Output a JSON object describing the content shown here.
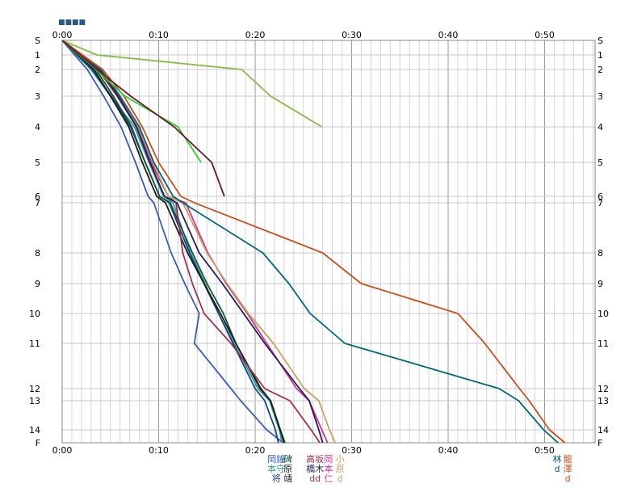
{
  "chart_data": {
    "type": "line",
    "title": "",
    "xlabel": "",
    "ylabel": "",
    "x_axis": {
      "unit": "minutes",
      "range": [
        0,
        55
      ],
      "ticks": [
        {
          "value": 0,
          "label": "0:00"
        },
        {
          "value": 10,
          "label": "0:10"
        },
        {
          "value": 20,
          "label": "0:20"
        },
        {
          "value": 30,
          "label": "0:30"
        },
        {
          "value": 40,
          "label": "0:40"
        },
        {
          "value": 50,
          "label": "0:50"
        }
      ],
      "grid_minor_step": 1,
      "grid_major_step": 10
    },
    "y_axis": {
      "categories": [
        "S",
        "1",
        "2",
        "3",
        "4",
        "5",
        "6",
        "7",
        "8",
        "9",
        "10",
        "11",
        "12",
        "13",
        "14",
        "F"
      ],
      "inverted": true
    },
    "grid": true,
    "corner_label": "■■■■",
    "series": [
      {
        "name": "series-1",
        "color": "#3a5bbf",
        "finish": 22.9,
        "values": [
          0,
          1.3,
          2.6,
          4.3,
          6.1,
          7.6,
          8.9,
          9.5,
          11.3,
          12.7,
          14.2,
          13.7,
          17.5,
          18.5,
          21.2,
          22.9
        ]
      },
      {
        "name": "series-2",
        "color": "#2a9a9a",
        "finish": 22.8,
        "values": [
          0,
          1.5,
          3.0,
          5.0,
          7.5,
          9.0,
          10.5,
          11.5,
          13.3,
          14.8,
          16.2,
          17.8,
          20.3,
          21.5,
          22.5,
          22.8
        ]
      },
      {
        "name": "series-3",
        "color": "#1a3f8c",
        "finish": 22.4,
        "values": [
          0,
          1.6,
          3.1,
          5.1,
          7.1,
          8.6,
          10.1,
          11.1,
          13.2,
          14.7,
          16.2,
          17.7,
          20.0,
          21.0,
          22.1,
          22.4
        ]
      },
      {
        "name": "series-4",
        "color": "#0a5a2a",
        "finish": 23.1,
        "values": [
          0,
          1.8,
          3.5,
          5.3,
          7.2,
          8.6,
          10.1,
          11.2,
          13.5,
          15.0,
          16.7,
          18.0,
          20.5,
          21.6,
          22.6,
          23.1
        ]
      },
      {
        "name": "series-5",
        "color": "#1a1a1a",
        "finish": 23.0,
        "values": [
          0,
          1.7,
          3.3,
          5.0,
          6.9,
          8.3,
          9.8,
          10.7,
          13.0,
          14.7,
          16.4,
          18.0,
          20.6,
          21.6,
          22.6,
          23.0
        ]
      },
      {
        "name": "series-6",
        "color": "#a03050",
        "finish": 26.7,
        "values": [
          0,
          1.9,
          3.7,
          5.7,
          7.7,
          9.2,
          11.0,
          11.8,
          12.5,
          13.5,
          14.7,
          17.5,
          21.0,
          23.6,
          25.8,
          26.7
        ]
      },
      {
        "name": "series-7",
        "color": "#cc3399",
        "finish": 27.5,
        "values": [
          0,
          2.0,
          3.9,
          5.9,
          7.8,
          9.3,
          11.0,
          12.8,
          15.1,
          17.0,
          19.2,
          21.2,
          24.3,
          25.6,
          26.9,
          27.5
        ]
      },
      {
        "name": "series-8",
        "color": "#c8a060",
        "finish": 28.3,
        "values": [
          0,
          2.1,
          4.1,
          6.0,
          7.9,
          9.4,
          11.0,
          12.5,
          15.0,
          17.1,
          19.3,
          21.9,
          25.1,
          26.6,
          27.7,
          28.3
        ]
      },
      {
        "name": "series-9",
        "color": "#2a1a5a",
        "finish": 27.0,
        "values": [
          0,
          2.0,
          3.9,
          5.8,
          7.7,
          9.1,
          10.6,
          11.9,
          14.2,
          16.6,
          18.8,
          21.0,
          24.6,
          25.6,
          26.6,
          27.0
        ]
      },
      {
        "name": "series-10",
        "color": "#00667a",
        "finish": 51.4,
        "values": [
          0,
          2.0,
          4.0,
          6.0,
          8.0,
          9.5,
          11.5,
          12.5,
          20.8,
          23.5,
          25.7,
          29.3,
          45.3,
          47.3,
          49.9,
          51.4
        ]
      },
      {
        "name": "series-11",
        "color": "#c8501e",
        "finish": 52.1,
        "values": [
          0,
          2.1,
          4.2,
          6.4,
          8.3,
          10.0,
          12.3,
          13.7,
          27.0,
          31.0,
          41.0,
          43.8,
          47.4,
          48.4,
          50.5,
          52.1
        ]
      },
      {
        "name": "series-12",
        "color": "#88bb44",
        "finish": null,
        "values": [
          0,
          3.6,
          18.6,
          21.6,
          26.9,
          null,
          null,
          null,
          null,
          null,
          null,
          null,
          null,
          null,
          null,
          null
        ]
      },
      {
        "name": "series-13",
        "color": "#33cc33",
        "finish": null,
        "values": [
          0,
          1.8,
          3.5,
          6.5,
          12.0,
          14.4,
          null,
          null,
          null,
          null,
          null,
          null,
          null,
          null,
          null,
          null
        ]
      },
      {
        "name": "series-14",
        "color": "#6b1a2a",
        "finish": null,
        "values": [
          0,
          1.9,
          3.6,
          7.1,
          11.6,
          15.5,
          16.8,
          null,
          null,
          null,
          null,
          null,
          null,
          null,
          null,
          null
        ]
      }
    ],
    "finish_labels": [
      {
        "group": "g1",
        "minute": 22.2,
        "lines": [
          "岡鐘",
          "本守",
          "将"
        ],
        "colors": [
          "#3a5bbf",
          "#2a9a9a",
          "#1a3f8c"
        ]
      },
      {
        "group": "g2",
        "minute": 23.4,
        "lines": [
          "碑",
          "原",
          "靖"
        ],
        "colors": [
          "#0a5a2a",
          "#1a1a1a",
          "#1a1a1a"
        ]
      },
      {
        "group": "g3",
        "minute": 26.2,
        "lines": [
          "高坂",
          "橋木",
          "dd"
        ],
        "colors": [
          "#a03050",
          "#2a1a5a",
          "#a03050"
        ]
      },
      {
        "group": "g4",
        "minute": 27.6,
        "lines": [
          "岡",
          "本",
          "仁"
        ],
        "colors": [
          "#cc3399",
          "#cc3399",
          "#cc3399"
        ]
      },
      {
        "group": "g5",
        "minute": 28.8,
        "lines": [
          "小",
          "原",
          "d"
        ],
        "colors": [
          "#c8a060",
          "#c8a060",
          "#c8a060"
        ]
      },
      {
        "group": "g6",
        "minute": 51.3,
        "lines": [
          "林",
          "d",
          ""
        ],
        "colors": [
          "#00667a",
          "#00667a",
          "#00667a"
        ]
      },
      {
        "group": "g7",
        "minute": 52.4,
        "lines": [
          "龍",
          "澤",
          "d"
        ],
        "colors": [
          "#c8501e",
          "#c8501e",
          "#c8501e"
        ]
      }
    ]
  }
}
